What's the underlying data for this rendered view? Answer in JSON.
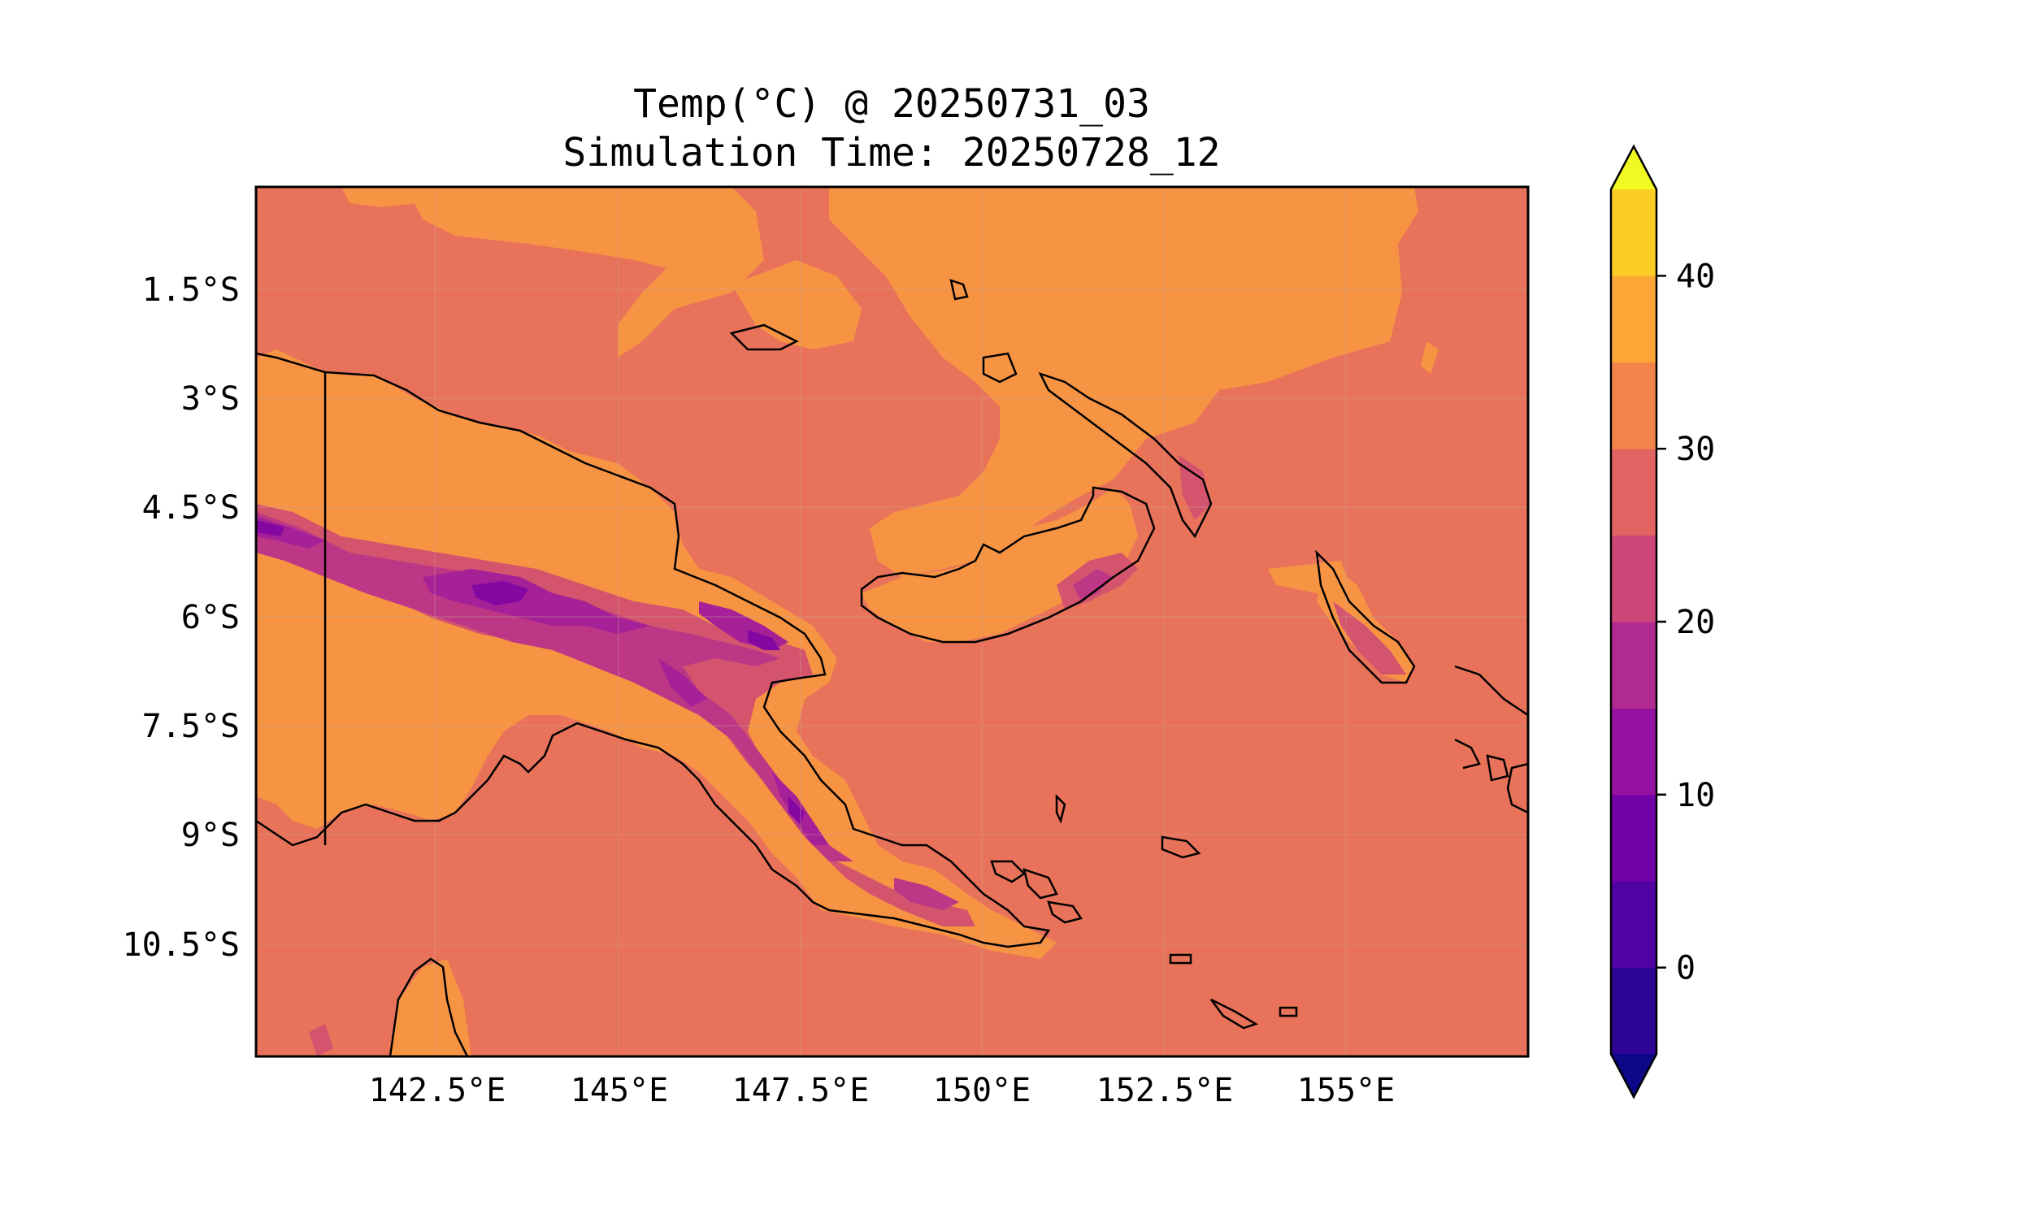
{
  "title": {
    "line1": "Temp(°C) @ 20250731_03",
    "line2": "Simulation Time: 20250728_12"
  },
  "map": {
    "region": "Papua New Guinea",
    "variable": "Temperature",
    "units": "°C",
    "extent": {
      "lon_min": 140.0,
      "lon_max": 157.5,
      "lat_min": -12.0,
      "lat_max": -0.0
    },
    "gridlines": true,
    "coastlines": true,
    "colors": {
      "ocean_25_30": "#e8725a",
      "warm_30_35": "#f79443",
      "band_20_25": "#d5546d",
      "band_15_20": "#bd3786",
      "band_10_15": "#a62098",
      "band_5_10": "#8507a2"
    }
  },
  "axes": {
    "x_ticks": [
      "142.5°E",
      "145°E",
      "147.5°E",
      "150°E",
      "152.5°E",
      "155°E"
    ],
    "y_ticks": [
      "1.5°S",
      "3°S",
      "4.5°S",
      "6°S",
      "7.5°S",
      "9°S",
      "10.5°S"
    ]
  },
  "colorbar": {
    "colormap": "plasma",
    "extend": "both",
    "levels": [
      -5,
      0,
      5,
      10,
      15,
      20,
      25,
      30,
      35,
      40,
      45
    ],
    "ticks": [
      "0",
      "10",
      "20",
      "30",
      "40"
    ],
    "band_colors": [
      "#2e0595",
      "#5002a2",
      "#7201a8",
      "#9511a1",
      "#b12a90",
      "#cc4778",
      "#e16462",
      "#f2844b",
      "#fca636",
      "#fccd25"
    ],
    "under_color": "#0d0887",
    "over_color": "#f0f921"
  }
}
